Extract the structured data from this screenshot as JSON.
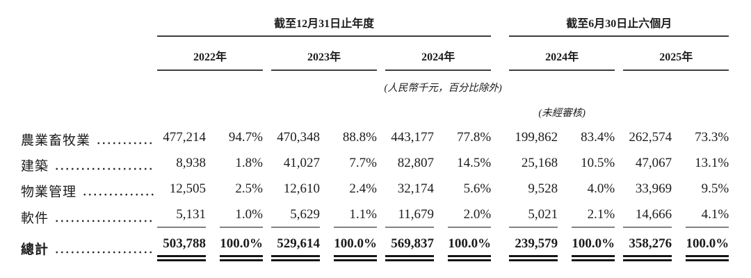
{
  "header": {
    "groups": [
      {
        "label": "截至12月31日止年度",
        "years": [
          "2022年",
          "2023年",
          "2024年"
        ]
      },
      {
        "label": "截至6月30日止六個月",
        "years": [
          "2024年",
          "2025年"
        ]
      }
    ],
    "unit_note": "(人民幣千元，百分比除外)",
    "unaudited_note": "(未經審核)"
  },
  "table": {
    "rows": [
      {
        "label": "農業畜牧業",
        "values": [
          "477,214",
          "94.7%",
          "470,348",
          "88.8%",
          "443,177",
          "77.8%",
          "199,862",
          "83.4%",
          "262,574",
          "73.3%"
        ]
      },
      {
        "label": "建築",
        "values": [
          "8,938",
          "1.8%",
          "41,027",
          "7.7%",
          "82,807",
          "14.5%",
          "25,168",
          "10.5%",
          "47,067",
          "13.1%"
        ]
      },
      {
        "label": "物業管理",
        "values": [
          "12,505",
          "2.5%",
          "12,610",
          "2.4%",
          "32,174",
          "5.6%",
          "9,528",
          "4.0%",
          "33,969",
          "9.5%"
        ]
      },
      {
        "label": "軟件",
        "values": [
          "5,131",
          "1.0%",
          "5,629",
          "1.1%",
          "11,679",
          "2.0%",
          "5,021",
          "2.1%",
          "14,666",
          "4.1%"
        ]
      }
    ],
    "total": {
      "label": "總計",
      "values": [
        "503,788",
        "100.0%",
        "529,614",
        "100.0%",
        "569,837",
        "100.0%",
        "239,579",
        "100.0%",
        "358,276",
        "100.0%"
      ]
    }
  },
  "colors": {
    "text": "#1c1c1c",
    "header_rule": "#3d3d3d",
    "sub_rule": "#828282",
    "total_rule": "#141414",
    "background": "#ffffff"
  }
}
